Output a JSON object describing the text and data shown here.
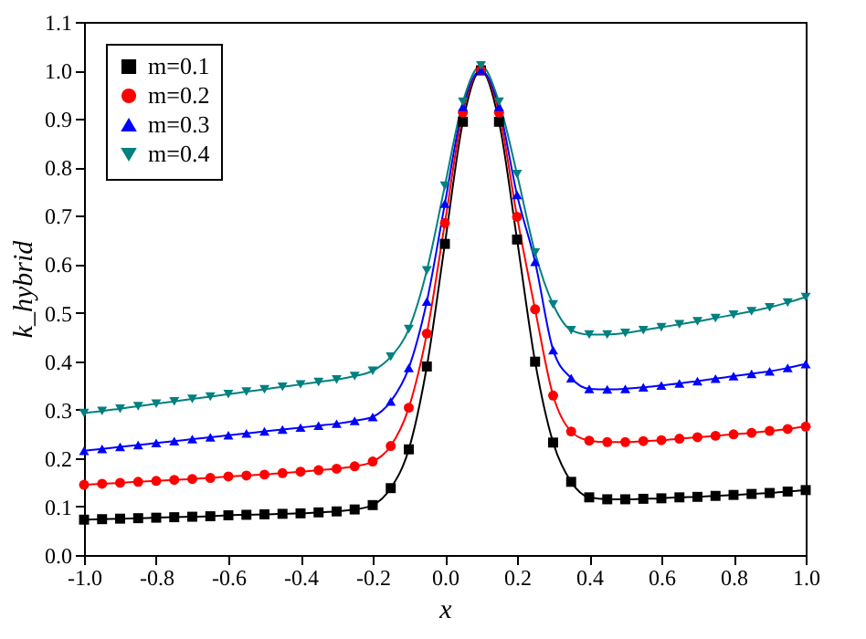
{
  "chart_data": {
    "type": "line",
    "xlabel": "x",
    "ylabel": "k_hybrid",
    "x": [
      -1.0,
      -0.95,
      -0.9,
      -0.85,
      -0.8,
      -0.75,
      -0.7,
      -0.65,
      -0.6,
      -0.55,
      -0.5,
      -0.45,
      -0.4,
      -0.35,
      -0.3,
      -0.25,
      -0.2,
      -0.15,
      -0.1,
      -0.05,
      0.0,
      0.05,
      0.1,
      0.15,
      0.2,
      0.25,
      0.3,
      0.35,
      0.4,
      0.45,
      0.5,
      0.55,
      0.6,
      0.65,
      0.7,
      0.75,
      0.8,
      0.85,
      0.9,
      0.95,
      1.0
    ],
    "series": [
      {
        "name": "m=0.1",
        "color": "#000000",
        "marker": "square",
        "values": [
          0.073,
          0.074,
          0.075,
          0.076,
          0.077,
          0.078,
          0.079,
          0.08,
          0.082,
          0.083,
          0.084,
          0.085,
          0.086,
          0.088,
          0.09,
          0.094,
          0.103,
          0.138,
          0.218,
          0.389,
          0.642,
          0.894,
          1.0,
          0.894,
          0.651,
          0.399,
          0.232,
          0.151,
          0.119,
          0.115,
          0.115,
          0.116,
          0.117,
          0.119,
          0.12,
          0.122,
          0.124,
          0.126,
          0.128,
          0.131,
          0.134
        ]
      },
      {
        "name": "m=0.2",
        "color": "#ff0000",
        "marker": "circle",
        "values": [
          0.145,
          0.147,
          0.149,
          0.151,
          0.153,
          0.155,
          0.157,
          0.159,
          0.162,
          0.164,
          0.166,
          0.169,
          0.172,
          0.175,
          0.178,
          0.183,
          0.193,
          0.225,
          0.304,
          0.457,
          0.685,
          0.913,
          1.0,
          0.913,
          0.698,
          0.507,
          0.329,
          0.255,
          0.236,
          0.233,
          0.233,
          0.235,
          0.237,
          0.24,
          0.243,
          0.246,
          0.249,
          0.252,
          0.256,
          0.26,
          0.265
        ]
      },
      {
        "name": "m=0.3",
        "color": "#0000ff",
        "marker": "triangle",
        "values": [
          0.215,
          0.219,
          0.223,
          0.227,
          0.231,
          0.235,
          0.239,
          0.243,
          0.247,
          0.251,
          0.255,
          0.259,
          0.263,
          0.267,
          0.271,
          0.277,
          0.285,
          0.317,
          0.386,
          0.523,
          0.725,
          0.925,
          1.0,
          0.925,
          0.743,
          0.605,
          0.423,
          0.365,
          0.343,
          0.342,
          0.343,
          0.346,
          0.35,
          0.354,
          0.359,
          0.364,
          0.369,
          0.374,
          0.379,
          0.386,
          0.394
        ]
      },
      {
        "name": "m=0.4",
        "color": "#008080",
        "marker": "triangle-down",
        "values": [
          0.293,
          0.297,
          0.302,
          0.307,
          0.312,
          0.317,
          0.322,
          0.327,
          0.332,
          0.337,
          0.342,
          0.347,
          0.352,
          0.357,
          0.362,
          0.369,
          0.38,
          0.409,
          0.466,
          0.587,
          0.762,
          0.935,
          1.01,
          0.935,
          0.786,
          0.624,
          0.517,
          0.464,
          0.455,
          0.455,
          0.458,
          0.464,
          0.47,
          0.476,
          0.482,
          0.489,
          0.496,
          0.503,
          0.511,
          0.521,
          0.532
        ]
      }
    ],
    "xlim": [
      -1.0,
      1.0
    ],
    "xticks": [
      {
        "value": -1.0,
        "label": "-1.0"
      },
      -0.8,
      -0.6,
      -0.4,
      -0.2,
      {
        "value": 0.0,
        "label": "0.0"
      },
      0.2,
      0.4,
      0.6,
      0.8,
      {
        "value": 1.0,
        "label": "1.0"
      }
    ],
    "ylim": [
      0.0,
      1.1
    ],
    "yticks": [
      {
        "value": 0.0,
        "label": "0.0"
      },
      0.1,
      0.2,
      0.3,
      0.4,
      0.5,
      0.6,
      0.7,
      0.8,
      0.9,
      {
        "value": 1.0,
        "label": "1.0"
      },
      1.1
    ],
    "legend": "top left",
    "grid": false,
    "line_style": "solid"
  }
}
